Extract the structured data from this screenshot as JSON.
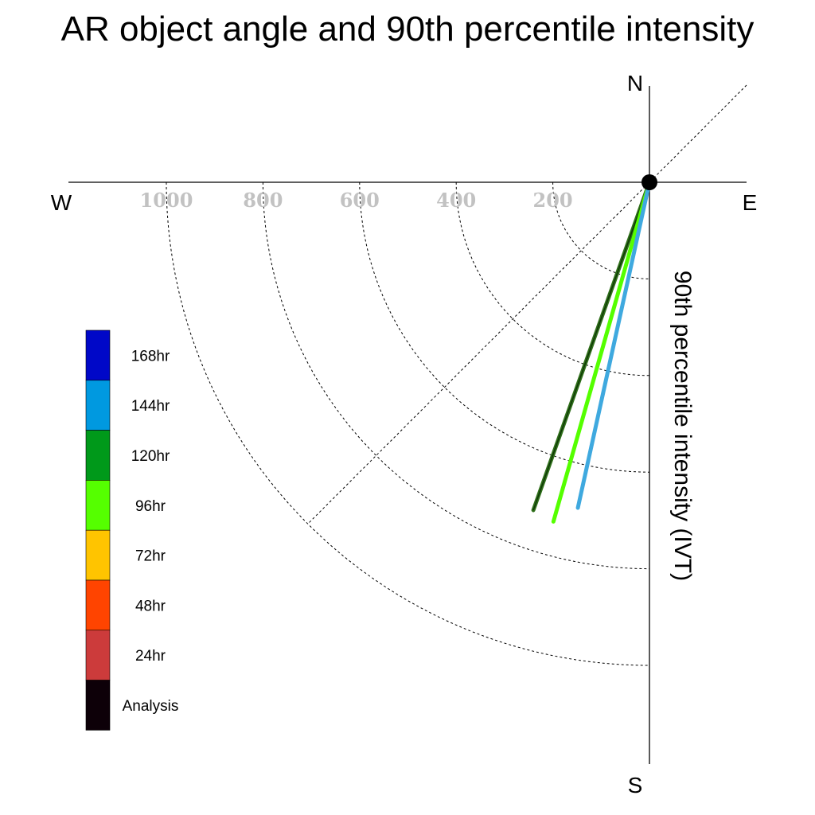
{
  "chart_data": {
    "type": "polar-line",
    "title": "AR object angle and 90th percentile intensity",
    "radial_label": "90th percentile intensity (IVT)",
    "compass": {
      "north": "N",
      "south": "S",
      "east": "E",
      "west": "W"
    },
    "radial_ticks": [
      200,
      400,
      600,
      800,
      1000
    ],
    "radial_tick_labels": [
      "200",
      "400",
      "600",
      "800",
      "1000"
    ],
    "r_max": 1000,
    "grid": true,
    "legend": {
      "placement": "left",
      "entries": [
        {
          "label": "168hr",
          "color": "#0008c8"
        },
        {
          "label": "144hr",
          "color": "#0099e0"
        },
        {
          "label": "120hr",
          "color": "#00991a"
        },
        {
          "label": "96hr",
          "color": "#55ff00"
        },
        {
          "label": "72hr",
          "color": "#ffc400"
        },
        {
          "label": "48hr",
          "color": "#ff4400"
        },
        {
          "label": "24hr",
          "color": "#cc3b3b"
        },
        {
          "label": "Analysis",
          "color": "#0d0008"
        }
      ]
    },
    "series": [
      {
        "legend_label": "120hr",
        "color": "#2f6f1a",
        "angle_deg_from_south_toward_west": 19.5,
        "intensity": 720
      },
      {
        "legend_label": "96hr",
        "color": "#55ff00",
        "angle_deg_from_south_toward_west": 15.8,
        "intensity": 730
      },
      {
        "legend_label": "144hr",
        "color": "#3fa9df",
        "angle_deg_from_south_toward_west": 12.4,
        "intensity": 690
      }
    ]
  }
}
